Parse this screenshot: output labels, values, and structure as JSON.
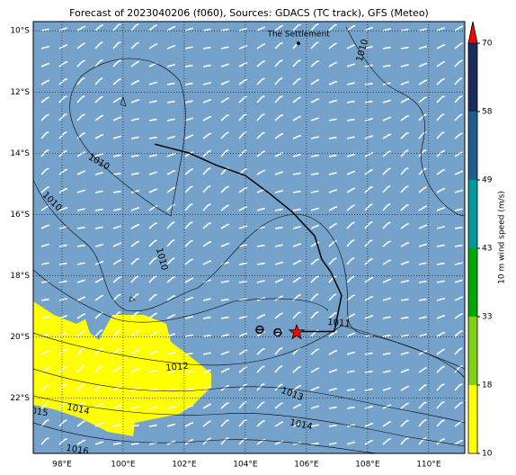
{
  "title": "Forecast of 2023040206 (f060), Sources: GDACS (TC track), GFS (Meteo)",
  "map": {
    "xlim": [
      97.06,
      111.18
    ],
    "ylim": [
      -23.8,
      -9.7
    ],
    "xticks": [
      {
        "value": 98,
        "label": "98°E"
      },
      {
        "value": 100,
        "label": "100°E"
      },
      {
        "value": 102,
        "label": "102°E"
      },
      {
        "value": 104,
        "label": "104°E"
      },
      {
        "value": 106,
        "label": "106°E"
      },
      {
        "value": 108,
        "label": "108°E"
      },
      {
        "value": 110,
        "label": "110°E"
      }
    ],
    "yticks": [
      {
        "value": -10,
        "label": "10°S"
      },
      {
        "value": -12,
        "label": "12°S"
      },
      {
        "value": -14,
        "label": "14°S"
      },
      {
        "value": -16,
        "label": "16°S"
      },
      {
        "value": -18,
        "label": "18°S"
      },
      {
        "value": -20,
        "label": "20°S"
      },
      {
        "value": -22,
        "label": "22°S"
      }
    ],
    "grid": true,
    "track": {
      "lon": [
        101.03,
        102.15,
        103.03,
        104.0,
        104.8,
        105.53,
        106.27,
        106.5,
        106.8,
        107.15,
        106.91,
        105.68
      ],
      "lat": [
        -13.7,
        -13.99,
        -14.38,
        -14.73,
        -15.32,
        -15.91,
        -16.7,
        -17.46,
        -17.88,
        -18.64,
        -19.82,
        -19.82
      ]
    },
    "markers": {
      "lon": [
        104.47,
        105.06
      ],
      "lat": [
        -19.76,
        -19.85
      ]
    },
    "current": {
      "lon": 105.68,
      "lat": -19.85,
      "color": "#ff0000"
    },
    "settlement": {
      "name": "The Settlement",
      "lon": 105.74,
      "lat": -10.41
    },
    "isobar_labels": [
      "1010",
      "1010",
      "1010",
      "1010",
      "1011",
      "1012",
      "1013",
      "1014",
      "1014",
      "015",
      "1016"
    ]
  },
  "colorbar": {
    "label": "10 m wind speed (m/s)",
    "ticks": [
      10,
      18,
      33,
      43,
      49,
      58,
      70
    ],
    "colors": [
      "#ffff00",
      "#7fd11a",
      "#00a800",
      "#009a9a",
      "#1f5f8f",
      "#1b2b5c"
    ],
    "extend_color": "#ff0000"
  }
}
